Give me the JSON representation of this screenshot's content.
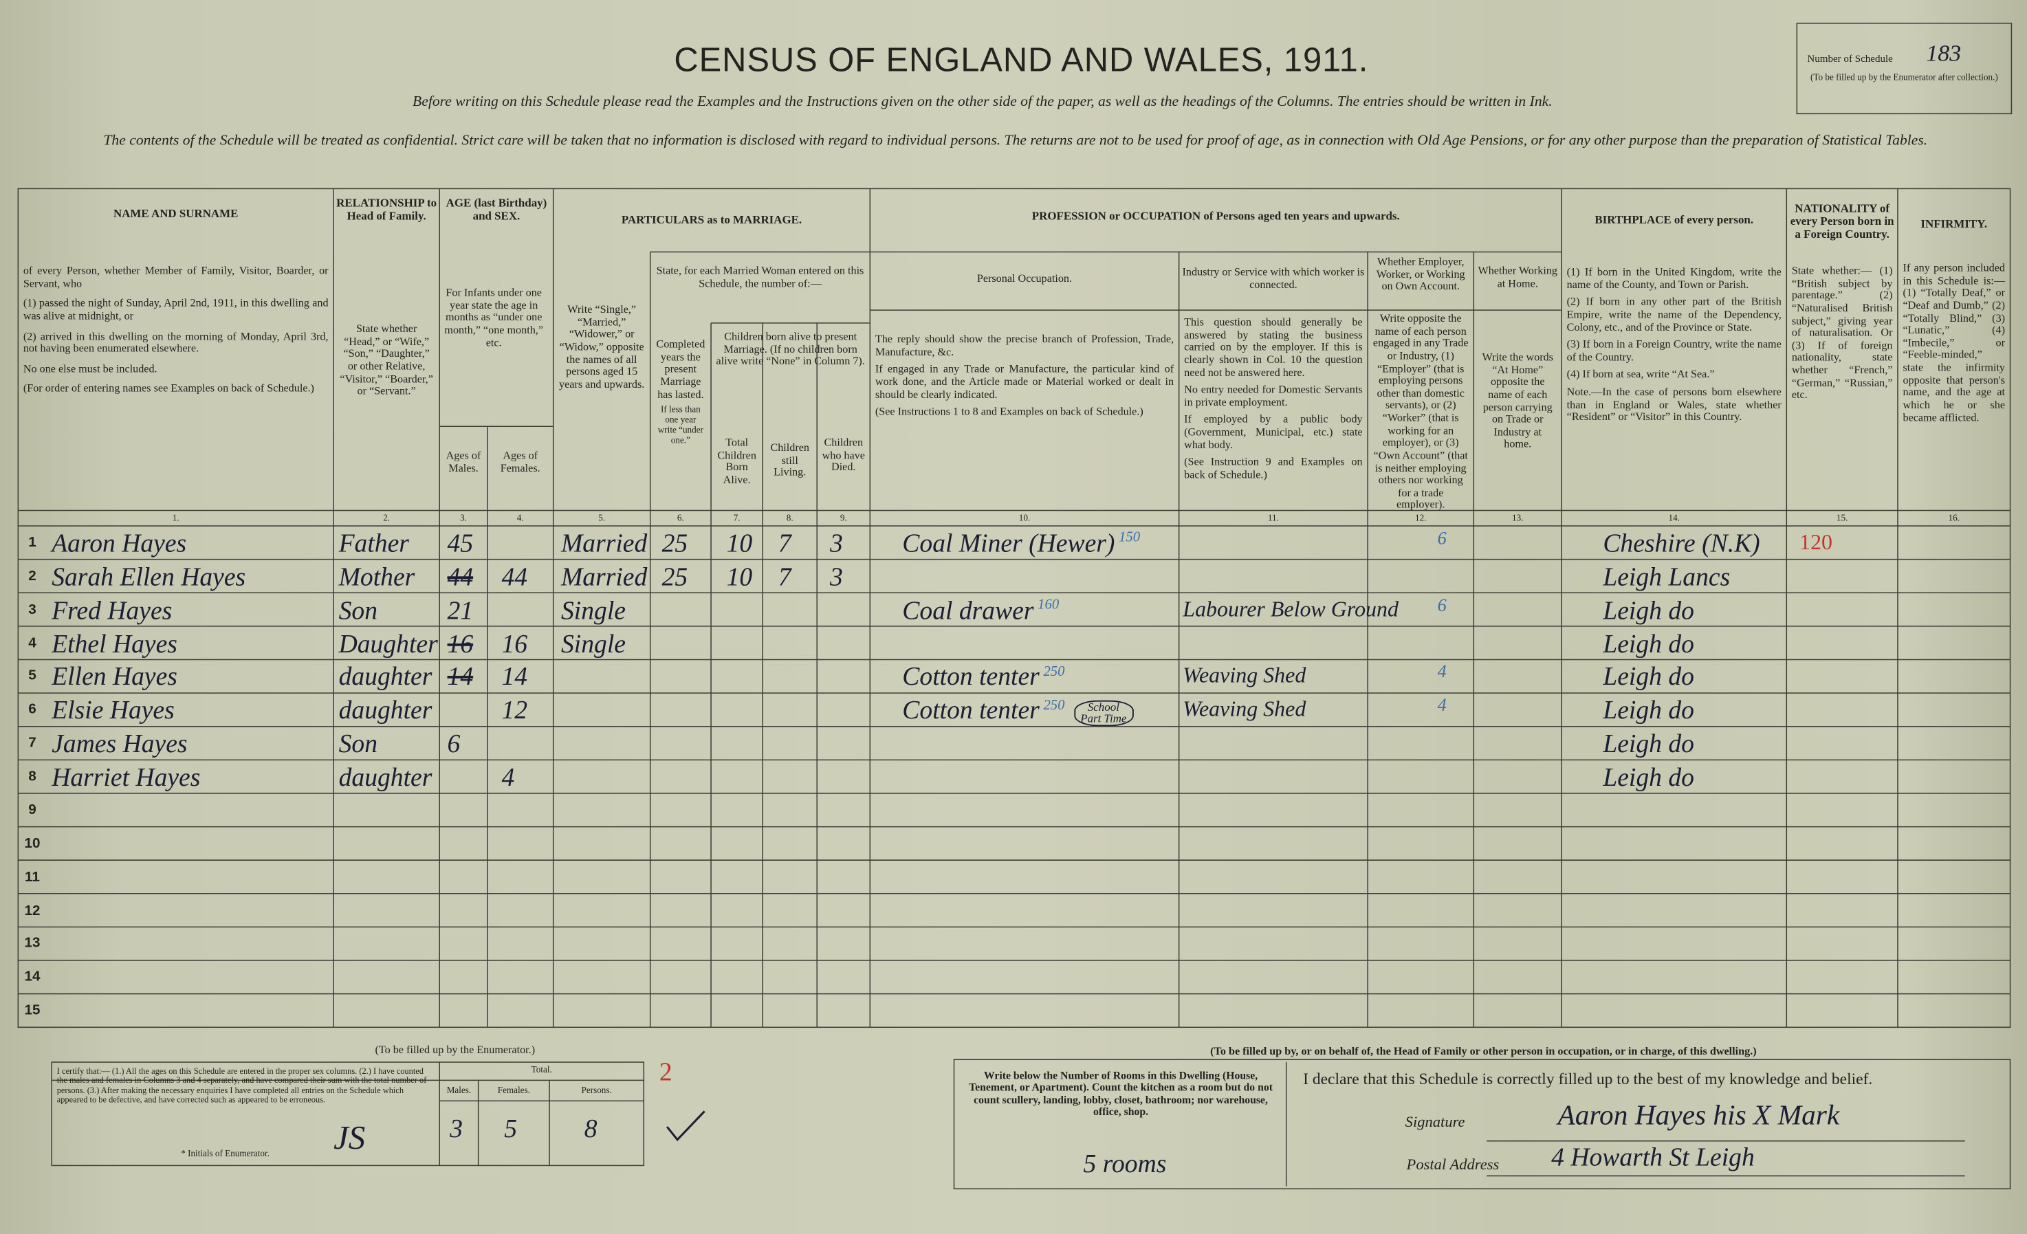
{
  "header": {
    "title": "CENSUS OF ENGLAND AND WALES, 1911.",
    "instruction": "Before writing on this Schedule please read the Examples and the Instructions given on the other side of the paper, as well as the headings of the Columns. The entries should be written in Ink.",
    "confidential_note": "The contents of the Schedule will be treated as confidential. Strict care will be taken that no information is disclosed with regard to individual persons. The returns are not to be used for proof of age, as in connection with Old Age Pensions, or for any other purpose than the preparation of Statistical Tables.",
    "schedule_number_label": "Number of Schedule",
    "schedule_number": "183",
    "schedule_number_note": "(To be filled up by the Enumerator after collection.)"
  },
  "groups": [
    {
      "heading": "AGE (last Birthday) and SEX.",
      "text": "For Infants under one year state the age in months as “under one month,” “one month,” etc."
    },
    {
      "heading": "PARTICULARS as to MARRIAGE."
    },
    {
      "heading": "State, for each Married Woman entered on this Schedule, the number of:—"
    },
    {
      "heading": "Children born alive to present Marriage. (If no children born alive write “None” in Column 7)."
    },
    {
      "heading": "PROFESSION or OCCUPATION of Persons aged ten years and upwards."
    }
  ],
  "columns": [
    {
      "number": "1.",
      "heading": "NAME AND SURNAME",
      "text": [
        "of every Person, whether Member of Family, Visitor, Boarder, or Servant, who",
        "(1) passed the night of Sunday, April 2nd, 1911, in this dwelling and was alive at midnight, or",
        "(2) arrived in this dwelling on the morning of Monday, April 3rd, not having been enumerated elsewhere.",
        "No one else must be included.",
        "(For order of entering names see Examples on back of Schedule.)"
      ]
    },
    {
      "number": "2.",
      "heading": "RELATIONSHIP to Head of Family.",
      "text": [
        "State whether “Head,” or “Wife,” “Son,” “Daughter,” or other Relative, “Visitor,” “Boarder,” or “Servant.”"
      ]
    },
    {
      "number": "3.",
      "heading": "Ages of Males."
    },
    {
      "number": "4.",
      "heading": "Ages of Females."
    },
    {
      "number": "5.",
      "text": [
        "Write “Single,” “Married,” “Widower,” or “Widow,” opposite the names of all persons aged 15 years and upwards."
      ]
    },
    {
      "number": "6.",
      "text": [
        "Completed years the present Marriage has lasted.",
        "If less than one year write “under one.”"
      ]
    },
    {
      "number": "7.",
      "heading": "Total Children Born Alive."
    },
    {
      "number": "8.",
      "heading": "Children still Living."
    },
    {
      "number": "9.",
      "heading": "Children who have Died."
    },
    {
      "number": "10.",
      "heading": "Personal Occupation.",
      "text": [
        "The reply should show the precise branch of Profession, Trade, Manufacture, &c.",
        "If engaged in any Trade or Manufacture, the particular kind of work done, and the Article made or Material worked or dealt in should be clearly indicated.",
        "(See Instructions 1 to 8 and Examples on back of Schedule.)"
      ]
    },
    {
      "number": "11.",
      "heading": "Industry or Service with which worker is connected.",
      "text": [
        "This question should generally be answered by stating the business carried on by the employer. If this is clearly shown in Col. 10 the question need not be answered here.",
        "No entry needed for Domestic Servants in private employment.",
        "If employed by a public body (Government, Municipal, etc.) state what body.",
        "(See Instruction 9 and Examples on back of Schedule.)"
      ]
    },
    {
      "number": "12.",
      "heading": "Whether Employer, Worker, or Working on Own Account.",
      "text": [
        "Write opposite the name of each person engaged in any Trade or Industry, (1) “Employer” (that is employing persons other than domestic servants), or (2) “Worker” (that is working for an employer), or (3) “Own Account” (that is neither employing others nor working for a trade employer)."
      ]
    },
    {
      "number": "13.",
      "heading": "Whether Working at Home.",
      "text": [
        "Write the words “At Home” opposite the name of each person carrying on Trade or Industry at home."
      ]
    },
    {
      "number": "14.",
      "heading": "BIRTHPLACE of every person.",
      "text": [
        "(1) If born in the United Kingdom, write the name of the County, and Town or Parish.",
        "(2) If born in any other part of the British Empire, write the name of the Dependency, Colony, etc., and of the Province or State.",
        "(3) If born in a Foreign Country, write the name of the Country.",
        "(4) If born at sea, write “At Sea.”",
        "Note.—In the case of persons born elsewhere than in England or Wales, state whether “Resident” or “Visitor” in this Country."
      ]
    },
    {
      "number": "15.",
      "heading": "NATIONALITY of every Person born in a Foreign Country.",
      "text": [
        "State whether:— (1) “British subject by parentage.” (2) “Naturalised British subject,” giving year of naturalisation. Or (3) If of foreign nationality, state whether “French,” “German,” “Russian,” etc."
      ]
    },
    {
      "number": "16.",
      "heading": "INFIRMITY.",
      "text": [
        "If any person included in this Schedule is:— (1) “Totally Deaf,” or “Deaf and Dumb,” (2) “Totally Blind,” (3) “Lunatic,” (4) “Imbecile,” or “Feeble-minded,” state the infirmity opposite that person's name, and the age at which he or she became afflicted."
      ]
    }
  ],
  "line_numbers": [
    "1",
    "2",
    "3",
    "4",
    "5",
    "6",
    "7",
    "8",
    "9",
    "10",
    "11",
    "12",
    "13",
    "14",
    "15"
  ],
  "rows": [
    {
      "name": "Aaron Hayes",
      "relationship": "Father",
      "age_males": "45",
      "condition": "Married",
      "years_married": "25",
      "children_born": "10",
      "children_living": "7",
      "children_died": "3",
      "occupation": "Coal Miner (Hewer)",
      "occupation_code": "150",
      "employment_status": "6",
      "birthplace": "Cheshire (N.K)",
      "nationality_note": "120"
    },
    {
      "name": "Sarah Ellen Hayes",
      "relationship": "Mother",
      "age_males_struck": "44",
      "age_females": "44",
      "condition": "Married",
      "years_married": "25",
      "children_born": "10",
      "children_living": "7",
      "children_died": "3",
      "birthplace": "Leigh Lancs"
    },
    {
      "name": "Fred Hayes",
      "relationship": "Son",
      "age_males": "21",
      "condition": "Single",
      "occupation": "Coal drawer",
      "occupation_code": "160",
      "industry": "Labourer Below Ground",
      "employment_status": "6",
      "birthplace": "Leigh do"
    },
    {
      "name": "Ethel Hayes",
      "relationship": "Daughter",
      "age_males_struck": "16",
      "age_females": "16",
      "condition": "Single",
      "birthplace": "Leigh do"
    },
    {
      "name": "Ellen Hayes",
      "relationship": "daughter",
      "age_males_struck": "14",
      "age_females": "14",
      "occupation": "Cotton tenter",
      "occupation_code": "250",
      "industry": "Weaving Shed",
      "employment_status": "4",
      "birthplace": "Leigh do"
    },
    {
      "name": "Elsie Hayes",
      "relationship": "daughter",
      "age_females": "12",
      "occupation": "Cotton tenter",
      "occupation_code": "250",
      "occupation_note": "School Part Time",
      "industry": "Weaving Shed",
      "employment_status": "4",
      "birthplace": "Leigh do"
    },
    {
      "name": "James Hayes",
      "relationship": "Son",
      "age_males": "6",
      "birthplace": "Leigh do"
    },
    {
      "name": "Harriet Hayes",
      "relationship": "daughter",
      "age_females": "4",
      "birthplace": "Leigh do"
    }
  ],
  "enumerator": {
    "heading": "(To be filled up by the Enumerator.)",
    "certification": "I certify that:— (1.) All the ages on this Schedule are entered in the proper sex columns. (2.) I have counted the males and females in Columns 3 and 4 separately, and have compared their sum with the total number of persons. (3.) After making the necessary enquiries I have completed all entries on the Schedule which appeared to be defective, and have corrected such as appeared to be erroneous.",
    "initials_label": "* Initials of Enumerator.",
    "initials": "JS",
    "total_label": "Total.",
    "males_label": "Males.",
    "females_label": "Females.",
    "persons_label": "Persons.",
    "males": "3",
    "females": "5",
    "persons": "8",
    "mark": "2"
  },
  "household": {
    "heading": "(To be filled up by, or on behalf of, the Head of Family or other person in occupation, or in charge, of this dwelling.)",
    "rooms_instruction": "Write below the Number of Rooms in this Dwelling (House, Tenement, or Apartment). Count the kitchen as a room but do not count scullery, landing, lobby, closet, bathroom; nor warehouse, office, shop.",
    "rooms": "5 rooms",
    "declaration": "I declare that this Schedule is correctly filled up to the best of my knowledge and belief.",
    "signature_label": "Signature",
    "signature": "Aaron Hayes his X Mark",
    "address_label": "Postal Address",
    "address": "4 Howarth St Leigh"
  }
}
